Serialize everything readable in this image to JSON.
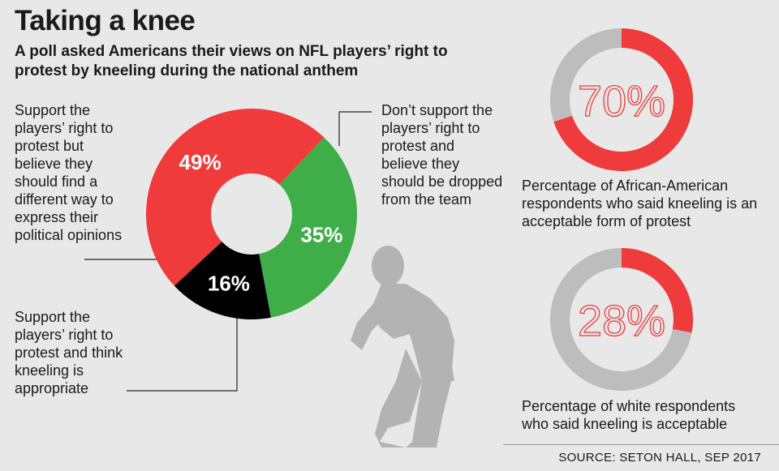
{
  "title": "Taking a knee",
  "subtitle": "A poll asked Americans their views on NFL players’ right to protest by kneeling during the national anthem",
  "labels": {
    "left": "Support the players’ right to protest but believe they should find a different way to express their political opinions",
    "bottom": "Support the players’ right to protest and think kneeling is appropriate",
    "right": "Don’t support the players’ right to protest and believe they should be dropped from the team"
  },
  "captions": {
    "african_american": "Percentage of African-American respondents who said kneeling is an acceptable form of protest",
    "white": "Percentage of white respondents who said kneeling is  acceptable"
  },
  "source": "SOURCE: SETON HALL, SEP 2017",
  "colors": {
    "red": "#ef3b3b",
    "green": "#3fae49",
    "black": "#000000",
    "gray": "#bdbdbd",
    "background": "#e8e8e8",
    "silhouette": "#b3b3b3"
  },
  "chart_data": [
    {
      "type": "pie",
      "donut": true,
      "slices": [
        {
          "label": "49%",
          "value": 49,
          "color": "#ef3b3b"
        },
        {
          "label": "35%",
          "value": 35,
          "color": "#3fae49"
        },
        {
          "label": "16%",
          "value": 16,
          "color": "#000000"
        }
      ]
    },
    {
      "type": "pie",
      "donut": true,
      "center_label": "70%",
      "slices": [
        {
          "value": 70,
          "color": "#ef3b3b"
        },
        {
          "value": 30,
          "color": "#bdbdbd"
        }
      ]
    },
    {
      "type": "pie",
      "donut": true,
      "center_label": "28%",
      "slices": [
        {
          "value": 28,
          "color": "#ef3b3b"
        },
        {
          "value": 72,
          "color": "#bdbdbd"
        }
      ]
    }
  ]
}
